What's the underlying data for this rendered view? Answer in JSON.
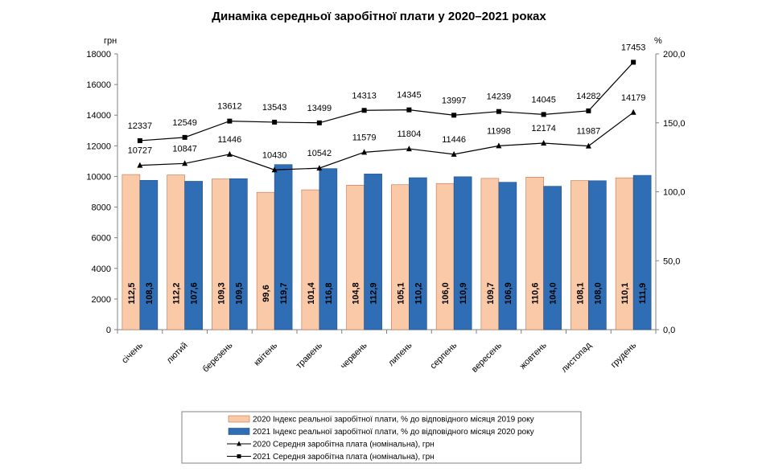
{
  "chart_data": {
    "type": "bar+line",
    "title": "Динаміка середньої заробітної плати у 2020–2021 роках",
    "left_axis": {
      "unit": "грн",
      "min": 0,
      "max": 18000,
      "step": 2000,
      "ticks": [
        "0",
        "2000",
        "4000",
        "6000",
        "8000",
        "10000",
        "12000",
        "14000",
        "16000",
        "18000"
      ]
    },
    "right_axis": {
      "unit": "%",
      "min": 0,
      "max": 200,
      "step": 50,
      "ticks": [
        "0,0",
        "50,0",
        "100,0",
        "150,0",
        "200,0"
      ]
    },
    "categories": [
      "січень",
      "лютий",
      "березень",
      "квітень",
      "травень",
      "червень",
      "липень",
      "серпень",
      "вересень",
      "жовтень",
      "листопад",
      "грудень"
    ],
    "series": [
      {
        "name": "2020 Індекс реальної заробітної плати, % до відповідного місяця 2019 року",
        "kind": "bar",
        "axis": "right",
        "color": "#F9C9A8",
        "stroke": "#C0714A",
        "values": [
          112.5,
          112.2,
          109.3,
          99.6,
          101.4,
          104.8,
          105.1,
          106.0,
          109.7,
          110.6,
          108.1,
          110.1
        ],
        "labels": [
          "112,5",
          "112,2",
          "109,3",
          "99,6",
          "101,4",
          "104,8",
          "105,1",
          "106,0",
          "109,7",
          "110,6",
          "108,1",
          "110,1"
        ]
      },
      {
        "name": "2021 Індекс реальної заробітної плати, % до відповідного місяця 2020 року",
        "kind": "bar",
        "axis": "right",
        "color": "#2F6EB5",
        "stroke": "#1F4E85",
        "values": [
          108.3,
          107.6,
          109.5,
          119.7,
          116.8,
          112.9,
          110.2,
          110.9,
          106.9,
          104.0,
          108.0,
          111.9
        ],
        "labels": [
          "108,3",
          "107,6",
          "109,5",
          "119,7",
          "116,8",
          "112,9",
          "110,2",
          "110,9",
          "106,9",
          "104,0",
          "108,0",
          "111,9"
        ]
      },
      {
        "name": "2020 Середня заробітна плата (номінальна), грн",
        "kind": "line",
        "marker": "triangle",
        "axis": "left",
        "color": "#000000",
        "values": [
          10727,
          10847,
          11446,
          10430,
          10542,
          11579,
          11804,
          11446,
          11998,
          12174,
          11987,
          14179
        ],
        "labels": [
          "10727",
          "10847",
          "11446",
          "10430",
          "10542",
          "11579",
          "11804",
          "11446",
          "11998",
          "12174",
          "11987",
          "14179"
        ]
      },
      {
        "name": "2021 Середня заробітна плата (номінальна), грн",
        "kind": "line",
        "marker": "square",
        "axis": "left",
        "color": "#000000",
        "values": [
          12337,
          12549,
          13612,
          13543,
          13499,
          14313,
          14345,
          13997,
          14239,
          14045,
          14282,
          17453
        ],
        "labels": [
          "12337",
          "12549",
          "13612",
          "13543",
          "13499",
          "14313",
          "14345",
          "13997",
          "14239",
          "14045",
          "14282",
          "17453"
        ]
      }
    ],
    "legend": {
      "position": "bottom",
      "entries": [
        "2020 Індекс реальної заробітної плати, % до відповідного місяця 2019 року",
        "2021 Індекс реальної заробітної плати, % до відповідного місяця 2020 року",
        "2020 Середня заробітна плата (номінальна), грн",
        "2021 Середня заробітна плата (номінальна), грн"
      ]
    }
  }
}
